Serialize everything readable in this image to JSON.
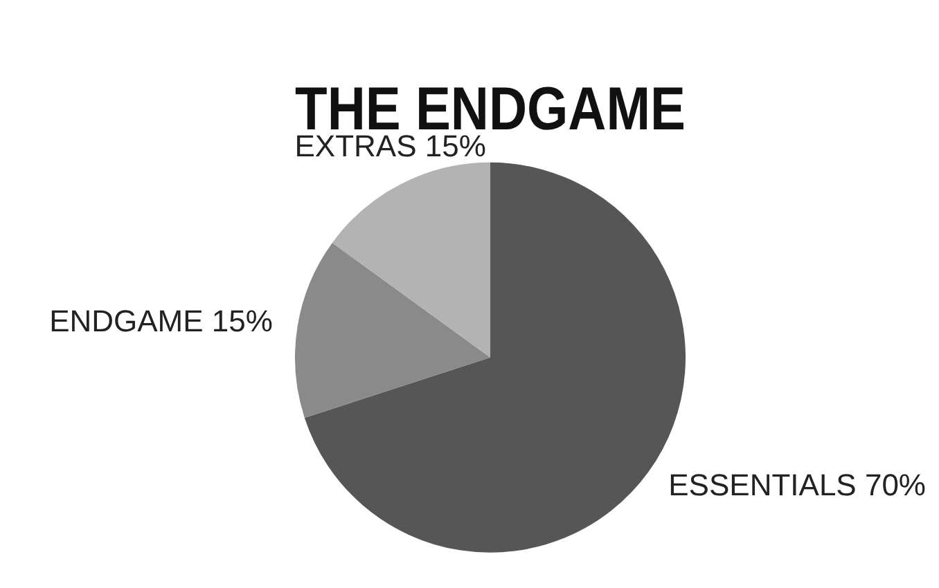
{
  "chart_data": {
    "type": "pie",
    "title": "THE ENDGAME",
    "categories": [
      "ESSENTIALS",
      "ENDGAME",
      "EXTRAS"
    ],
    "values": [
      70,
      15,
      15
    ],
    "value_labels": [
      "70%",
      "15%",
      "15%"
    ],
    "colors": [
      "#565656",
      "#8a8a8a",
      "#b3b3b3"
    ],
    "legend": false
  }
}
